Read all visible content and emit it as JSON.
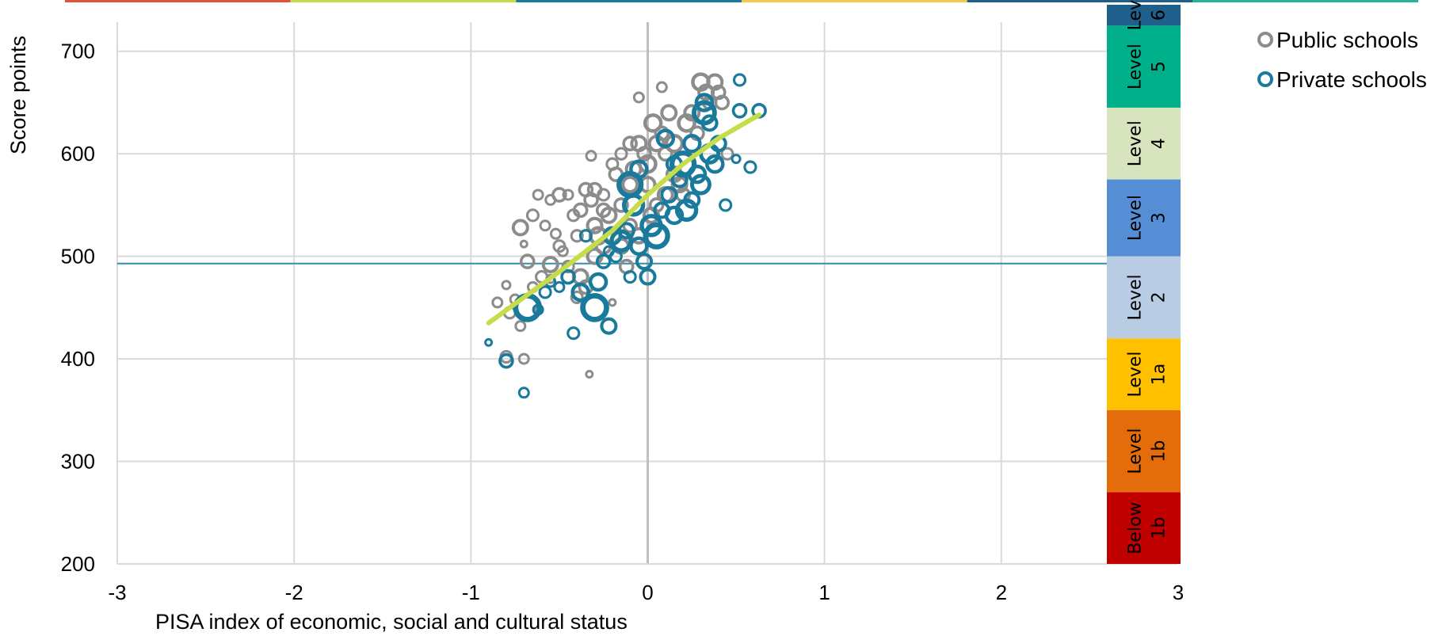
{
  "chart_data": {
    "type": "scatter",
    "xlabel": "PISA index of economic, social and cultural status",
    "ylabel": "Score points",
    "xlim": [
      -3,
      3
    ],
    "ylim": [
      200,
      750
    ],
    "x_ticks": [
      -3,
      -2,
      -1,
      0,
      1,
      2,
      3
    ],
    "x_tick_labels": [
      "-3",
      "-2",
      "-1",
      "0",
      "1",
      "2",
      "3"
    ],
    "y_ticks": [
      200,
      300,
      400,
      500,
      600,
      700
    ],
    "y_tick_labels": [
      "200",
      "300",
      "400",
      "500",
      "600",
      "700"
    ],
    "grid": true,
    "legend_position": "top-right",
    "reference_line": {
      "y": 493,
      "color": "#2E8FAE"
    },
    "trend_line": {
      "color": "#C5DD4A",
      "points": [
        [
          -0.9,
          435
        ],
        [
          -0.5,
          485
        ],
        [
          -0.2,
          525
        ],
        [
          0.0,
          560
        ],
        [
          0.2,
          590
        ],
        [
          0.4,
          615
        ],
        [
          0.63,
          638
        ]
      ]
    },
    "top_strip_colors": [
      "#E0533A",
      "#C5DD4A",
      "#1A7A9C",
      "#F2C94C",
      "#1F5F8B",
      "#27B39A"
    ],
    "proficiency_bands": [
      {
        "label_line1": "Below",
        "label_line2": "1b",
        "from": 200,
        "to": 270,
        "color": "#C00000"
      },
      {
        "label_line1": "Level",
        "label_line2": "1b",
        "from": 270,
        "to": 350,
        "color": "#E46C0A"
      },
      {
        "label_line1": "Level",
        "label_line2": "1a",
        "from": 350,
        "to": 420,
        "color": "#FFC000"
      },
      {
        "label_line1": "Level",
        "label_line2": "2",
        "from": 420,
        "to": 500,
        "color": "#B8CCE4"
      },
      {
        "label_line1": "Level",
        "label_line2": "3",
        "from": 500,
        "to": 575,
        "color": "#558ED5"
      },
      {
        "label_line1": "Level",
        "label_line2": "4",
        "from": 575,
        "to": 645,
        "color": "#D7E4BD"
      },
      {
        "label_line1": "Level",
        "label_line2": "5",
        "from": 645,
        "to": 725,
        "color": "#00B08A"
      },
      {
        "label_line1": "Lev",
        "label_line2": "6",
        "from": 725,
        "to": 780,
        "color": "#1F5F8B"
      }
    ],
    "series": [
      {
        "name": "Public schools",
        "color": "#8C8C8C",
        "points": [
          [
            -0.72,
            528,
            9
          ],
          [
            -0.65,
            540,
            7
          ],
          [
            -0.62,
            560,
            6
          ],
          [
            -0.55,
            555,
            6
          ],
          [
            -0.5,
            560,
            8
          ],
          [
            -0.45,
            560,
            6
          ],
          [
            -0.58,
            530,
            6
          ],
          [
            -0.52,
            522,
            6
          ],
          [
            -0.48,
            505,
            6
          ],
          [
            -0.42,
            540,
            7
          ],
          [
            -0.38,
            545,
            8
          ],
          [
            -0.35,
            565,
            8
          ],
          [
            -0.32,
            555,
            8
          ],
          [
            -0.3,
            530,
            9
          ],
          [
            -0.28,
            520,
            10
          ],
          [
            -0.25,
            560,
            7
          ],
          [
            -0.22,
            540,
            9
          ],
          [
            -0.2,
            590,
            7
          ],
          [
            -0.18,
            580,
            8
          ],
          [
            -0.15,
            600,
            7
          ],
          [
            -0.1,
            570,
            9
          ],
          [
            -0.08,
            585,
            9
          ],
          [
            -0.05,
            610,
            9
          ],
          [
            -0.02,
            600,
            8
          ],
          [
            0.0,
            590,
            10
          ],
          [
            0.03,
            630,
            10
          ],
          [
            0.05,
            610,
            9
          ],
          [
            0.08,
            620,
            8
          ],
          [
            0.1,
            600,
            8
          ],
          [
            0.12,
            640,
            9
          ],
          [
            0.15,
            610,
            10
          ],
          [
            0.18,
            570,
            9
          ],
          [
            0.2,
            560,
            8
          ],
          [
            0.22,
            630,
            10
          ],
          [
            0.25,
            640,
            9
          ],
          [
            0.28,
            620,
            8
          ],
          [
            0.3,
            670,
            10
          ],
          [
            0.33,
            660,
            9
          ],
          [
            0.35,
            650,
            8
          ],
          [
            0.38,
            670,
            9
          ],
          [
            0.4,
            660,
            8
          ],
          [
            0.42,
            650,
            8
          ],
          [
            0.45,
            600,
            7
          ],
          [
            -0.05,
            655,
            6
          ],
          [
            0.08,
            665,
            6
          ],
          [
            -0.32,
            598,
            6
          ],
          [
            -0.45,
            490,
            7
          ],
          [
            -0.55,
            492,
            9
          ],
          [
            -0.6,
            480,
            7
          ],
          [
            -0.65,
            470,
            6
          ],
          [
            -0.68,
            495,
            8
          ],
          [
            -0.75,
            458,
            6
          ],
          [
            -0.8,
            472,
            5
          ],
          [
            -0.85,
            455,
            6
          ],
          [
            -0.78,
            445,
            7
          ],
          [
            -0.72,
            432,
            6
          ],
          [
            -0.8,
            402,
            7
          ],
          [
            -0.7,
            400,
            6
          ],
          [
            -0.35,
            470,
            8
          ],
          [
            -0.4,
            460,
            7
          ],
          [
            -0.38,
            480,
            9
          ],
          [
            -0.3,
            500,
            9
          ],
          [
            -0.25,
            510,
            9
          ],
          [
            -0.2,
            520,
            10
          ],
          [
            -0.15,
            510,
            9
          ],
          [
            -0.12,
            490,
            8
          ],
          [
            -0.1,
            530,
            8
          ],
          [
            -0.05,
            520,
            9
          ],
          [
            0.02,
            540,
            9
          ],
          [
            0.05,
            550,
            8
          ],
          [
            0.1,
            560,
            9
          ],
          [
            -0.15,
            550,
            8
          ],
          [
            -0.33,
            385,
            4
          ],
          [
            -0.7,
            512,
            4
          ],
          [
            -0.2,
            455,
            4
          ],
          [
            -0.62,
            448,
            4
          ],
          [
            -0.55,
            478,
            5
          ],
          [
            -0.3,
            565,
            8
          ],
          [
            -0.25,
            545,
            8
          ],
          [
            0.0,
            570,
            9
          ],
          [
            0.15,
            580,
            9
          ],
          [
            -0.1,
            610,
            8
          ],
          [
            -0.4,
            520,
            7
          ],
          [
            -0.5,
            510,
            7
          ]
        ]
      },
      {
        "name": "Private schools",
        "color": "#1A7A9C",
        "points": [
          [
            -0.9,
            416,
            4
          ],
          [
            -0.8,
            398,
            8
          ],
          [
            -0.7,
            367,
            6
          ],
          [
            -0.68,
            450,
            15
          ],
          [
            -0.58,
            465,
            7
          ],
          [
            -0.62,
            448,
            6
          ],
          [
            -0.55,
            475,
            6
          ],
          [
            -0.45,
            480,
            8
          ],
          [
            -0.42,
            425,
            7
          ],
          [
            -0.38,
            465,
            10
          ],
          [
            -0.3,
            450,
            15
          ],
          [
            -0.28,
            475,
            10
          ],
          [
            -0.25,
            495,
            8
          ],
          [
            -0.22,
            432,
            9
          ],
          [
            -0.2,
            520,
            10
          ],
          [
            -0.18,
            500,
            7
          ],
          [
            -0.15,
            515,
            12
          ],
          [
            -0.12,
            525,
            9
          ],
          [
            -0.1,
            480,
            7
          ],
          [
            -0.1,
            570,
            14
          ],
          [
            -0.08,
            550,
            12
          ],
          [
            -0.05,
            585,
            10
          ],
          [
            -0.05,
            510,
            10
          ],
          [
            -0.02,
            495,
            9
          ],
          [
            0.0,
            480,
            9
          ],
          [
            0.02,
            530,
            12
          ],
          [
            0.05,
            520,
            14
          ],
          [
            0.08,
            545,
            9
          ],
          [
            0.1,
            615,
            10
          ],
          [
            0.12,
            560,
            9
          ],
          [
            0.15,
            540,
            10
          ],
          [
            0.18,
            575,
            9
          ],
          [
            0.2,
            590,
            14
          ],
          [
            0.22,
            545,
            12
          ],
          [
            0.25,
            555,
            9
          ],
          [
            0.28,
            580,
            10
          ],
          [
            0.3,
            570,
            11
          ],
          [
            0.32,
            640,
            13
          ],
          [
            0.32,
            650,
            10
          ],
          [
            0.35,
            600,
            11
          ],
          [
            0.35,
            630,
            9
          ],
          [
            0.38,
            590,
            10
          ],
          [
            0.4,
            610,
            9
          ],
          [
            0.44,
            550,
            7
          ],
          [
            0.5,
            595,
            5
          ],
          [
            0.52,
            642,
            8
          ],
          [
            0.58,
            587,
            7
          ],
          [
            0.52,
            672,
            7
          ],
          [
            0.63,
            642,
            8
          ],
          [
            -0.22,
            505,
            6
          ],
          [
            0.25,
            610,
            10
          ],
          [
            0.15,
            590,
            9
          ],
          [
            -0.35,
            520,
            7
          ],
          [
            -0.5,
            470,
            6
          ]
        ]
      }
    ]
  }
}
